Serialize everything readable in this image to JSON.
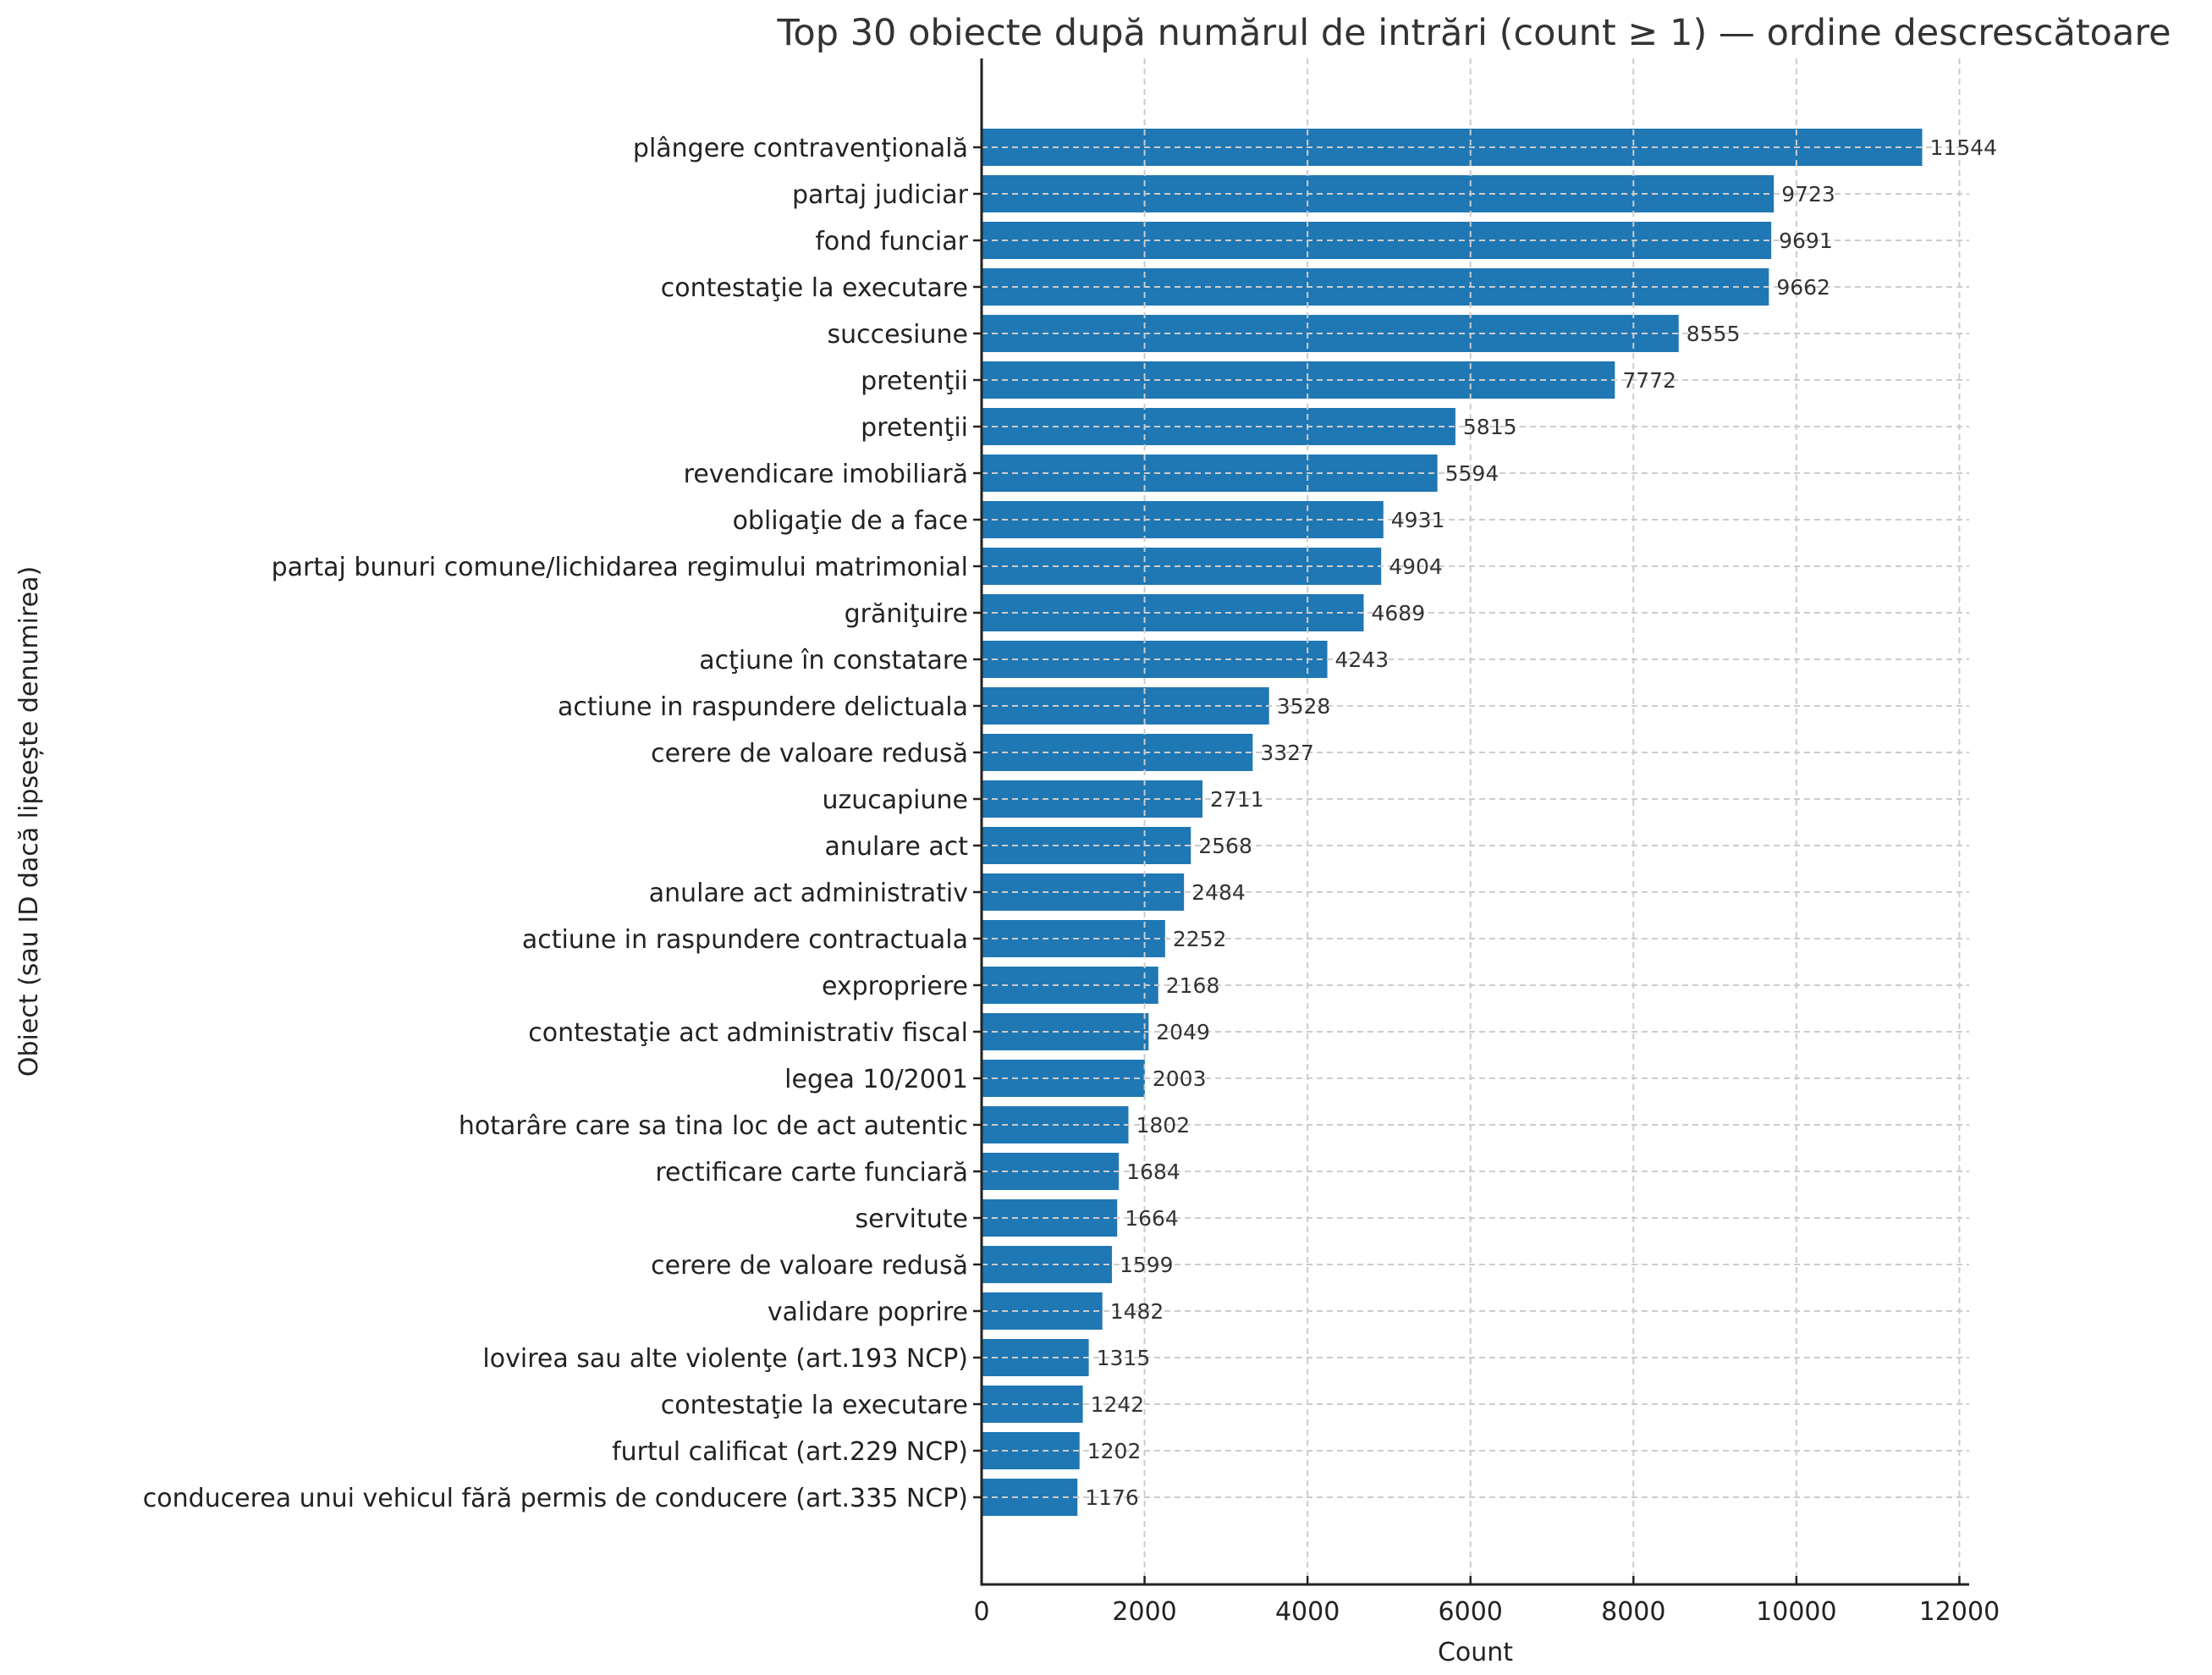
{
  "chart_data": {
    "type": "bar",
    "orientation": "horizontal",
    "title": "Top 30 obiecte după numărul de intrări (count ≥ 1) — ordine descrescătoare",
    "xlabel": "Count",
    "ylabel": "Obiect (sau ID dacă lipsește denumirea)",
    "xlim": [
      0,
      12120
    ],
    "xticks": [
      0,
      2000,
      4000,
      6000,
      8000,
      10000,
      12000
    ],
    "xtick_labels": [
      "0",
      "2000",
      "4000",
      "6000",
      "8000",
      "10000",
      "12000"
    ],
    "grid": true,
    "grid_style": "dashed",
    "bar_color": "#1f77b4",
    "value_labels_shown": true,
    "categories": [
      "plângere contravenţională",
      "partaj judiciar",
      "fond funciar",
      "contestaţie la executare",
      "succesiune",
      "pretenţii",
      "pretenţii",
      "revendicare imobiliară",
      "obligaţie de a face",
      "partaj bunuri comune/lichidarea regimului matrimonial",
      "grăniţuire",
      "acţiune în constatare",
      "actiune in raspundere delictuala",
      "cerere de valoare redusă",
      "uzucapiune",
      "anulare act",
      "anulare act administrativ",
      "actiune in raspundere contractuala",
      "expropriere",
      "contestaţie act administrativ fiscal",
      "legea 10/2001",
      "hotarâre care sa tina loc de act autentic",
      "rectificare carte funciară",
      "servitute",
      "cerere de valoare redusă",
      "validare poprire",
      "lovirea sau alte violenţe (art.193 NCP)",
      "contestaţie la executare",
      "furtul calificat (art.229 NCP)",
      "conducerea unui vehicul fără permis de conducere (art.335 NCP)"
    ],
    "values": [
      11544,
      9723,
      9691,
      9662,
      8555,
      7772,
      5815,
      5594,
      4931,
      4904,
      4689,
      4243,
      3528,
      3327,
      2711,
      2568,
      2484,
      2252,
      2168,
      2049,
      2003,
      1802,
      1684,
      1664,
      1599,
      1482,
      1315,
      1242,
      1202,
      1176
    ]
  }
}
